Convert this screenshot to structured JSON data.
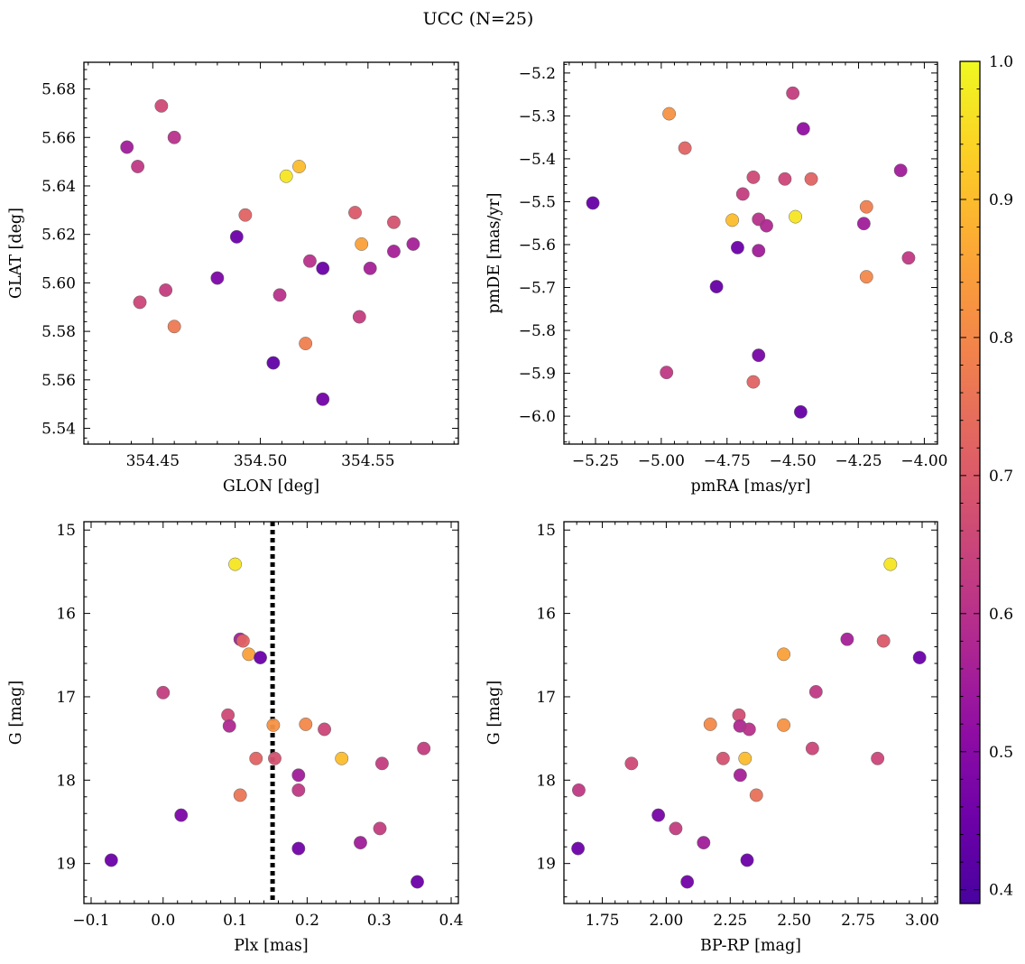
{
  "figure": {
    "title": "UCC (N=25)",
    "colorbar": {
      "range": [
        0.39,
        1.0
      ],
      "ticks": [
        0.4,
        0.5,
        0.6,
        0.7,
        0.8,
        0.9,
        1.0
      ],
      "tick_labels": [
        "0.4",
        "0.5",
        "0.6",
        "0.7",
        "0.8",
        "0.9",
        "1.0"
      ],
      "colormap": "plasma"
    }
  },
  "chart_data": [
    {
      "type": "scatter",
      "title": "",
      "xlabel": "GLON [deg]",
      "ylabel": "GLAT [deg]",
      "xlim": [
        354.418,
        354.592
      ],
      "ylim": [
        5.5335,
        5.691
      ],
      "xticks": [
        354.45,
        354.5,
        354.55
      ],
      "xtick_labels": [
        "354.45",
        "354.50",
        "354.55"
      ],
      "yticks": [
        5.54,
        5.56,
        5.58,
        5.6,
        5.62,
        5.64,
        5.66,
        5.68
      ],
      "ytick_labels": [
        "5.54",
        "5.56",
        "5.58",
        "5.60",
        "5.62",
        "5.64",
        "5.66",
        "5.68"
      ],
      "points": [
        {
          "x": 354.454,
          "y": 5.673,
          "c": 0.66
        },
        {
          "x": 354.438,
          "y": 5.656,
          "c": 0.55
        },
        {
          "x": 354.46,
          "y": 5.66,
          "c": 0.6
        },
        {
          "x": 354.443,
          "y": 5.648,
          "c": 0.62
        },
        {
          "x": 354.518,
          "y": 5.648,
          "c": 0.9
        },
        {
          "x": 354.512,
          "y": 5.644,
          "c": 0.97
        },
        {
          "x": 354.493,
          "y": 5.628,
          "c": 0.72
        },
        {
          "x": 354.544,
          "y": 5.629,
          "c": 0.7
        },
        {
          "x": 354.562,
          "y": 5.625,
          "c": 0.68
        },
        {
          "x": 354.489,
          "y": 5.619,
          "c": 0.45
        },
        {
          "x": 354.547,
          "y": 5.616,
          "c": 0.85
        },
        {
          "x": 354.571,
          "y": 5.616,
          "c": 0.56
        },
        {
          "x": 354.562,
          "y": 5.613,
          "c": 0.56
        },
        {
          "x": 354.523,
          "y": 5.609,
          "c": 0.6
        },
        {
          "x": 354.529,
          "y": 5.606,
          "c": 0.45
        },
        {
          "x": 354.551,
          "y": 5.606,
          "c": 0.56
        },
        {
          "x": 354.48,
          "y": 5.602,
          "c": 0.48
        },
        {
          "x": 354.456,
          "y": 5.597,
          "c": 0.63
        },
        {
          "x": 354.509,
          "y": 5.595,
          "c": 0.6
        },
        {
          "x": 354.444,
          "y": 5.592,
          "c": 0.65
        },
        {
          "x": 354.546,
          "y": 5.586,
          "c": 0.63
        },
        {
          "x": 354.46,
          "y": 5.582,
          "c": 0.77
        },
        {
          "x": 354.521,
          "y": 5.575,
          "c": 0.78
        },
        {
          "x": 354.506,
          "y": 5.567,
          "c": 0.43
        },
        {
          "x": 354.529,
          "y": 5.552,
          "c": 0.46
        }
      ]
    },
    {
      "type": "scatter",
      "title": "",
      "xlabel": "pmRA [mas/yr]",
      "ylabel": "pmDE [mas/yr]",
      "xlim": [
        -5.37,
        -3.95
      ],
      "ylim": [
        -6.065,
        -5.175
      ],
      "xticks": [
        -5.25,
        -5.0,
        -4.75,
        -4.5,
        -4.25,
        -4.0
      ],
      "xtick_labels": [
        "−5.25",
        "−5.00",
        "−4.75",
        "−4.50",
        "−4.25",
        "−4.00"
      ],
      "yticks": [
        -6.0,
        -5.9,
        -5.8,
        -5.7,
        -5.6,
        -5.5,
        -5.4,
        -5.3,
        -5.2
      ],
      "ytick_labels": [
        "−6.0",
        "−5.9",
        "−5.8",
        "−5.7",
        "−5.6",
        "−5.5",
        "−5.4",
        "−5.3",
        "−5.2"
      ],
      "points": [
        {
          "x": -4.5,
          "y": -5.247,
          "c": 0.63
        },
        {
          "x": -4.97,
          "y": -5.295,
          "c": 0.82
        },
        {
          "x": -4.46,
          "y": -5.33,
          "c": 0.52
        },
        {
          "x": -4.91,
          "y": -5.375,
          "c": 0.72
        },
        {
          "x": -4.09,
          "y": -5.427,
          "c": 0.55
        },
        {
          "x": -4.65,
          "y": -5.443,
          "c": 0.66
        },
        {
          "x": -4.53,
          "y": -5.447,
          "c": 0.65
        },
        {
          "x": -4.43,
          "y": -5.447,
          "c": 0.72
        },
        {
          "x": -4.69,
          "y": -5.482,
          "c": 0.63
        },
        {
          "x": -5.26,
          "y": -5.503,
          "c": 0.44
        },
        {
          "x": -4.22,
          "y": -5.512,
          "c": 0.78
        },
        {
          "x": -4.49,
          "y": -5.535,
          "c": 0.97
        },
        {
          "x": -4.73,
          "y": -5.543,
          "c": 0.9
        },
        {
          "x": -4.63,
          "y": -5.541,
          "c": 0.6
        },
        {
          "x": -4.6,
          "y": -5.556,
          "c": 0.58
        },
        {
          "x": -4.23,
          "y": -5.551,
          "c": 0.55
        },
        {
          "x": -4.71,
          "y": -5.607,
          "c": 0.45
        },
        {
          "x": -4.63,
          "y": -5.614,
          "c": 0.55
        },
        {
          "x": -4.06,
          "y": -5.631,
          "c": 0.62
        },
        {
          "x": -4.22,
          "y": -5.675,
          "c": 0.8
        },
        {
          "x": -4.79,
          "y": -5.698,
          "c": 0.44
        },
        {
          "x": -4.63,
          "y": -5.858,
          "c": 0.47
        },
        {
          "x": -4.98,
          "y": -5.898,
          "c": 0.62
        },
        {
          "x": -4.65,
          "y": -5.92,
          "c": 0.72
        },
        {
          "x": -4.47,
          "y": -5.99,
          "c": 0.44
        }
      ]
    },
    {
      "type": "scatter",
      "title": "",
      "xlabel": "Plx [mas]",
      "ylabel": "G [mag]",
      "xlim": [
        -0.11,
        0.41
      ],
      "ylim": [
        19.48,
        14.9
      ],
      "y_inverted": true,
      "vline": 0.152,
      "vline_style": "dotted",
      "xticks": [
        -0.1,
        0.0,
        0.1,
        0.2,
        0.3,
        0.4
      ],
      "xtick_labels": [
        "−0.1",
        "0.0",
        "0.1",
        "0.2",
        "0.3",
        "0.4"
      ],
      "yticks": [
        15,
        16,
        17,
        18,
        19
      ],
      "ytick_labels": [
        "15",
        "16",
        "17",
        "18",
        "19"
      ],
      "points": [
        {
          "x": 0.1,
          "y": 15.41,
          "c": 0.97
        },
        {
          "x": 0.107,
          "y": 16.31,
          "c": 0.56
        },
        {
          "x": 0.111,
          "y": 16.33,
          "c": 0.72
        },
        {
          "x": 0.119,
          "y": 16.49,
          "c": 0.85
        },
        {
          "x": 0.135,
          "y": 16.53,
          "c": 0.45
        },
        {
          "x": 0.0,
          "y": 16.95,
          "c": 0.63
        },
        {
          "x": 0.09,
          "y": 17.22,
          "c": 0.66
        },
        {
          "x": 0.092,
          "y": 17.35,
          "c": 0.58
        },
        {
          "x": 0.153,
          "y": 17.34,
          "c": 0.82
        },
        {
          "x": 0.198,
          "y": 17.33,
          "c": 0.8
        },
        {
          "x": 0.224,
          "y": 17.39,
          "c": 0.65
        },
        {
          "x": 0.362,
          "y": 17.62,
          "c": 0.63
        },
        {
          "x": 0.129,
          "y": 17.74,
          "c": 0.72
        },
        {
          "x": 0.155,
          "y": 17.74,
          "c": 0.68
        },
        {
          "x": 0.248,
          "y": 17.74,
          "c": 0.9
        },
        {
          "x": 0.304,
          "y": 17.8,
          "c": 0.63
        },
        {
          "x": 0.188,
          "y": 17.94,
          "c": 0.55
        },
        {
          "x": 0.188,
          "y": 18.12,
          "c": 0.62
        },
        {
          "x": 0.107,
          "y": 18.18,
          "c": 0.76
        },
        {
          "x": 0.025,
          "y": 18.42,
          "c": 0.48
        },
        {
          "x": 0.301,
          "y": 18.58,
          "c": 0.63
        },
        {
          "x": 0.274,
          "y": 18.75,
          "c": 0.55
        },
        {
          "x": 0.188,
          "y": 18.82,
          "c": 0.46
        },
        {
          "x": -0.072,
          "y": 18.96,
          "c": 0.45
        },
        {
          "x": 0.353,
          "y": 19.22,
          "c": 0.45
        }
      ]
    },
    {
      "type": "scatter",
      "title": "",
      "xlabel": "BP-RP [mag]",
      "ylabel": "G [mag]",
      "xlim": [
        1.6,
        3.06
      ],
      "ylim": [
        19.48,
        14.9
      ],
      "y_inverted": true,
      "xticks": [
        1.75,
        2.0,
        2.25,
        2.5,
        2.75,
        3.0
      ],
      "xtick_labels": [
        "1.75",
        "2.00",
        "2.25",
        "2.50",
        "2.75",
        "3.00"
      ],
      "yticks": [
        15,
        16,
        17,
        18,
        19
      ],
      "ytick_labels": [
        "15",
        "16",
        "17",
        "18",
        "19"
      ],
      "points": [
        {
          "x": 2.876,
          "y": 15.41,
          "c": 0.97
        },
        {
          "x": 2.707,
          "y": 16.31,
          "c": 0.56
        },
        {
          "x": 2.849,
          "y": 16.33,
          "c": 0.7
        },
        {
          "x": 2.459,
          "y": 16.49,
          "c": 0.85
        },
        {
          "x": 2.99,
          "y": 16.53,
          "c": 0.45
        },
        {
          "x": 2.585,
          "y": 16.94,
          "c": 0.62
        },
        {
          "x": 2.284,
          "y": 17.22,
          "c": 0.67
        },
        {
          "x": 2.172,
          "y": 17.33,
          "c": 0.8
        },
        {
          "x": 2.288,
          "y": 17.35,
          "c": 0.58
        },
        {
          "x": 2.459,
          "y": 17.34,
          "c": 0.82
        },
        {
          "x": 2.324,
          "y": 17.39,
          "c": 0.6
        },
        {
          "x": 2.571,
          "y": 17.62,
          "c": 0.65
        },
        {
          "x": 2.222,
          "y": 17.74,
          "c": 0.68
        },
        {
          "x": 2.308,
          "y": 17.74,
          "c": 0.9
        },
        {
          "x": 2.826,
          "y": 17.74,
          "c": 0.65
        },
        {
          "x": 1.864,
          "y": 17.8,
          "c": 0.66
        },
        {
          "x": 2.289,
          "y": 17.94,
          "c": 0.56
        },
        {
          "x": 1.658,
          "y": 18.12,
          "c": 0.62
        },
        {
          "x": 2.352,
          "y": 18.18,
          "c": 0.75
        },
        {
          "x": 1.969,
          "y": 18.42,
          "c": 0.47
        },
        {
          "x": 2.037,
          "y": 18.58,
          "c": 0.63
        },
        {
          "x": 2.146,
          "y": 18.75,
          "c": 0.55
        },
        {
          "x": 1.655,
          "y": 18.82,
          "c": 0.45
        },
        {
          "x": 2.316,
          "y": 18.96,
          "c": 0.45
        },
        {
          "x": 2.082,
          "y": 19.22,
          "c": 0.46
        }
      ]
    }
  ]
}
